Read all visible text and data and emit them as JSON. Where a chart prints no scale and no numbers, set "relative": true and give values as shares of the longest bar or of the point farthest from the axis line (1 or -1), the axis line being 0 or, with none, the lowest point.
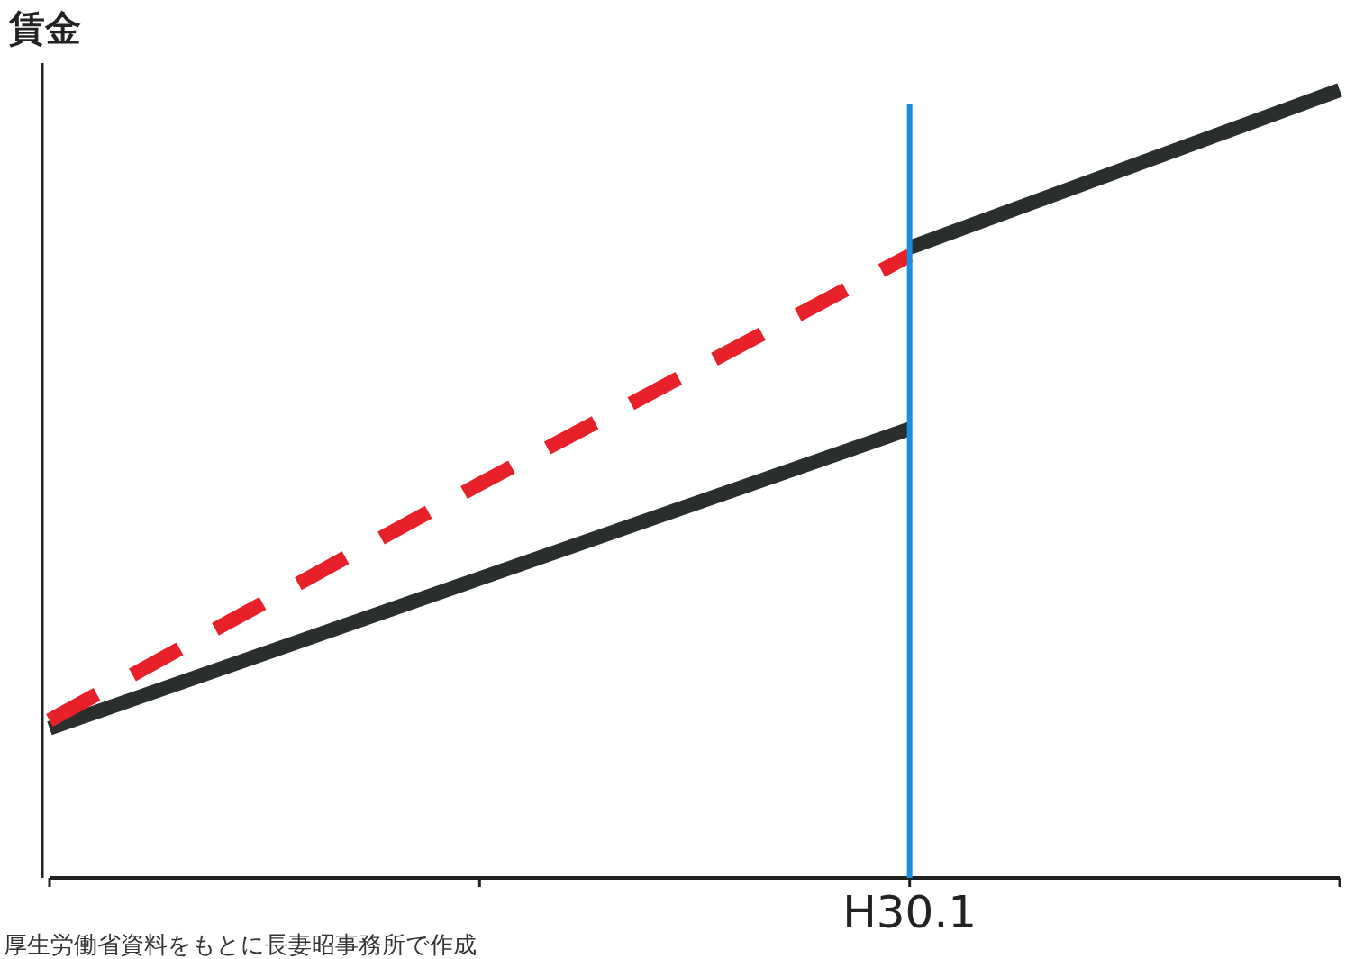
{
  "chart_data": {
    "type": "line",
    "ylabel": "賃金",
    "relative": true,
    "categories": [
      null,
      null,
      null,
      null
    ],
    "series": [
      {
        "color": "#2a2e2c",
        "values": [
          0.19,
          0.38,
          0.57,
          null
        ],
        "line_style": "solid"
      },
      {
        "color": "#2a2e2c",
        "values": [
          null,
          null,
          0.8,
          1.0
        ],
        "line_style": "solid"
      },
      {
        "color": "#e8202a",
        "values": [
          0.2,
          0.5,
          0.79,
          null
        ],
        "line_style": "dashed"
      }
    ],
    "annotations": [
      "H30.1",
      "厚生労働省資料をもとに長妻昭事務所で作成"
    ]
  }
}
